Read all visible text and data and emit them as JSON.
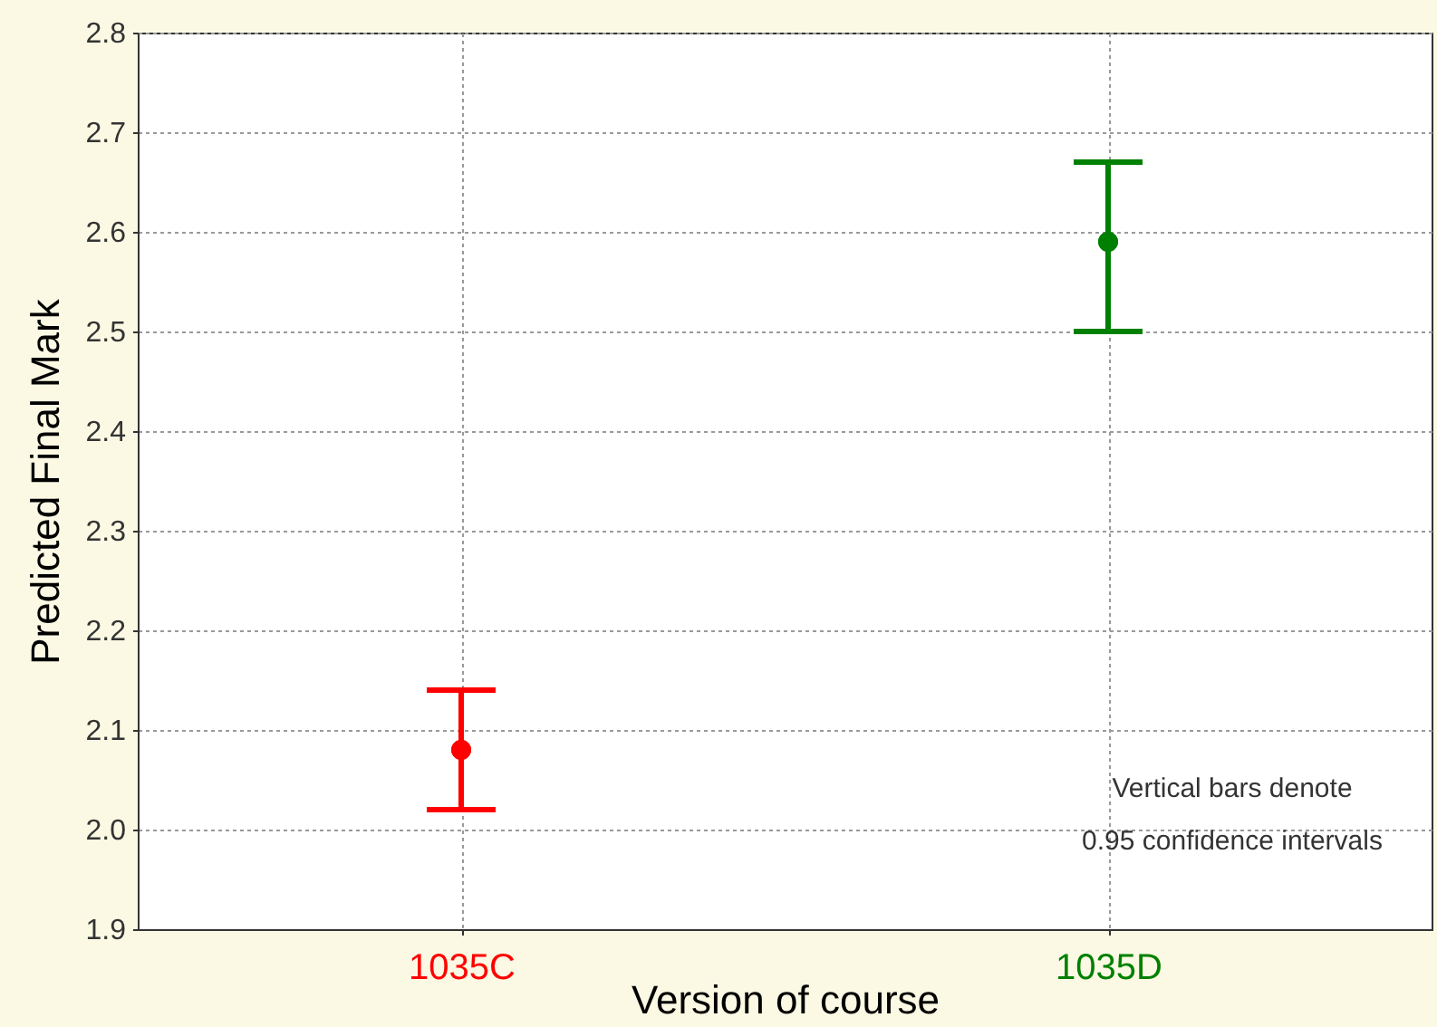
{
  "chart_data": {
    "type": "scatter",
    "xlabel": "Version of course",
    "ylabel": "Predicted Final Mark",
    "categories": [
      "1035C",
      "1035D"
    ],
    "values": [
      2.08,
      2.59
    ],
    "errors": [
      [
        2.02,
        2.14
      ],
      [
        2.5,
        2.67
      ]
    ],
    "colors": [
      "#ff0000",
      "#008000"
    ],
    "ylim": [
      1.9,
      2.8
    ],
    "yticks": [
      1.9,
      {
        "value": 2,
        "label": "2.0"
      },
      2.1,
      2.2,
      2.3,
      2.4,
      2.5,
      2.6,
      2.7,
      2.8
    ],
    "grid": true,
    "marker": "circle",
    "annotations": [
      "Vertical bars denote\n0.95 confidence intervals"
    ]
  }
}
